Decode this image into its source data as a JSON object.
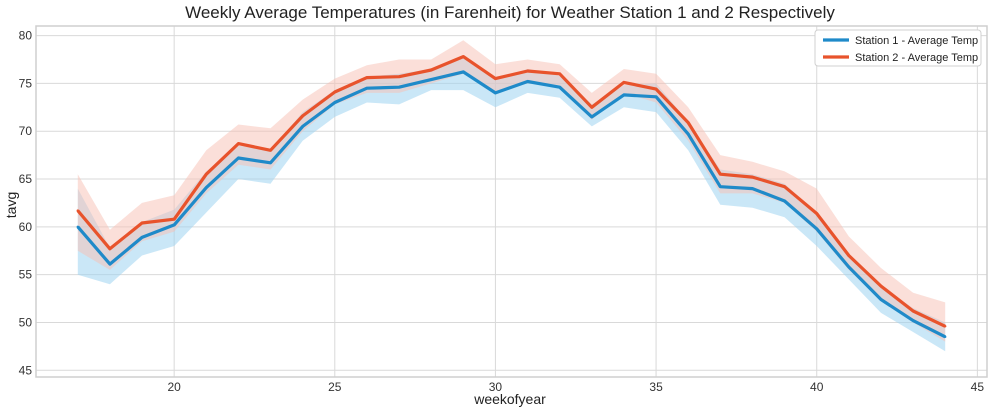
{
  "chart_data": {
    "type": "line",
    "title": "Weekly Average Temperatures (in Farenheit) for Weather Station 1 and 2 Respectively",
    "xlabel": "weekofyear",
    "ylabel": "tavg",
    "xlim": [
      15.7,
      45.3
    ],
    "ylim": [
      44.3,
      81.0
    ],
    "xticks": [
      20,
      25,
      30,
      35,
      40,
      45
    ],
    "yticks": [
      45,
      50,
      55,
      60,
      65,
      70,
      75,
      80
    ],
    "grid": true,
    "legend": "top-right",
    "x": [
      17,
      18,
      19,
      20,
      21,
      22,
      23,
      24,
      25,
      26,
      27,
      28,
      29,
      30,
      31,
      32,
      33,
      34,
      35,
      36,
      37,
      38,
      39,
      40,
      41,
      42,
      43,
      44
    ],
    "series": [
      {
        "name": "Station 1 - Average Temp",
        "color": "#1f8ac9",
        "band_color": "#9ed4f0",
        "values": [
          60.0,
          56.1,
          58.9,
          60.2,
          64.1,
          67.2,
          66.7,
          70.5,
          73.0,
          74.5,
          74.6,
          75.4,
          76.2,
          74.0,
          75.2,
          74.6,
          71.5,
          73.8,
          73.6,
          69.7,
          64.2,
          64.0,
          62.7,
          59.8,
          55.8,
          52.4,
          50.2,
          48.5
        ],
        "lower": [
          55.0,
          54.0,
          57.0,
          58.0,
          61.5,
          65.0,
          64.5,
          69.0,
          71.5,
          73.0,
          72.8,
          74.3,
          74.3,
          72.5,
          74.0,
          73.5,
          70.5,
          72.5,
          72.0,
          68.0,
          62.3,
          62.0,
          61.0,
          58.0,
          54.5,
          51.0,
          49.0,
          47.0
        ],
        "upper": [
          64.0,
          57.8,
          60.5,
          61.8,
          65.8,
          68.5,
          68.0,
          72.0,
          74.3,
          75.7,
          76.0,
          76.5,
          77.8,
          75.5,
          76.5,
          75.8,
          72.8,
          74.8,
          75.0,
          71.0,
          66.0,
          65.5,
          64.5,
          61.5,
          57.0,
          53.8,
          51.5,
          50.0
        ]
      },
      {
        "name": "Station 2 - Average Temp",
        "color": "#e8532c",
        "band_color": "#f8c0b4",
        "values": [
          61.7,
          57.7,
          60.4,
          60.8,
          65.5,
          68.7,
          68.0,
          71.6,
          74.1,
          75.6,
          75.7,
          76.4,
          77.8,
          75.5,
          76.3,
          76.0,
          72.5,
          75.1,
          74.4,
          70.9,
          65.5,
          65.2,
          64.2,
          61.4,
          57.0,
          53.8,
          51.2,
          49.6
        ],
        "lower": [
          57.5,
          55.5,
          58.5,
          59.5,
          63.5,
          66.5,
          66.0,
          70.0,
          72.8,
          74.0,
          74.0,
          75.0,
          76.0,
          74.0,
          75.0,
          74.8,
          71.2,
          74.0,
          73.0,
          69.0,
          63.5,
          63.5,
          62.5,
          59.5,
          55.5,
          52.3,
          50.0,
          48.0
        ],
        "upper": [
          65.5,
          59.7,
          62.5,
          63.3,
          68.0,
          70.7,
          70.3,
          73.3,
          75.5,
          76.9,
          77.5,
          77.5,
          79.5,
          77.0,
          77.5,
          77.0,
          74.0,
          76.5,
          76.0,
          72.5,
          67.5,
          66.8,
          65.8,
          64.0,
          59.0,
          55.7,
          53.1,
          52.1
        ]
      }
    ]
  }
}
